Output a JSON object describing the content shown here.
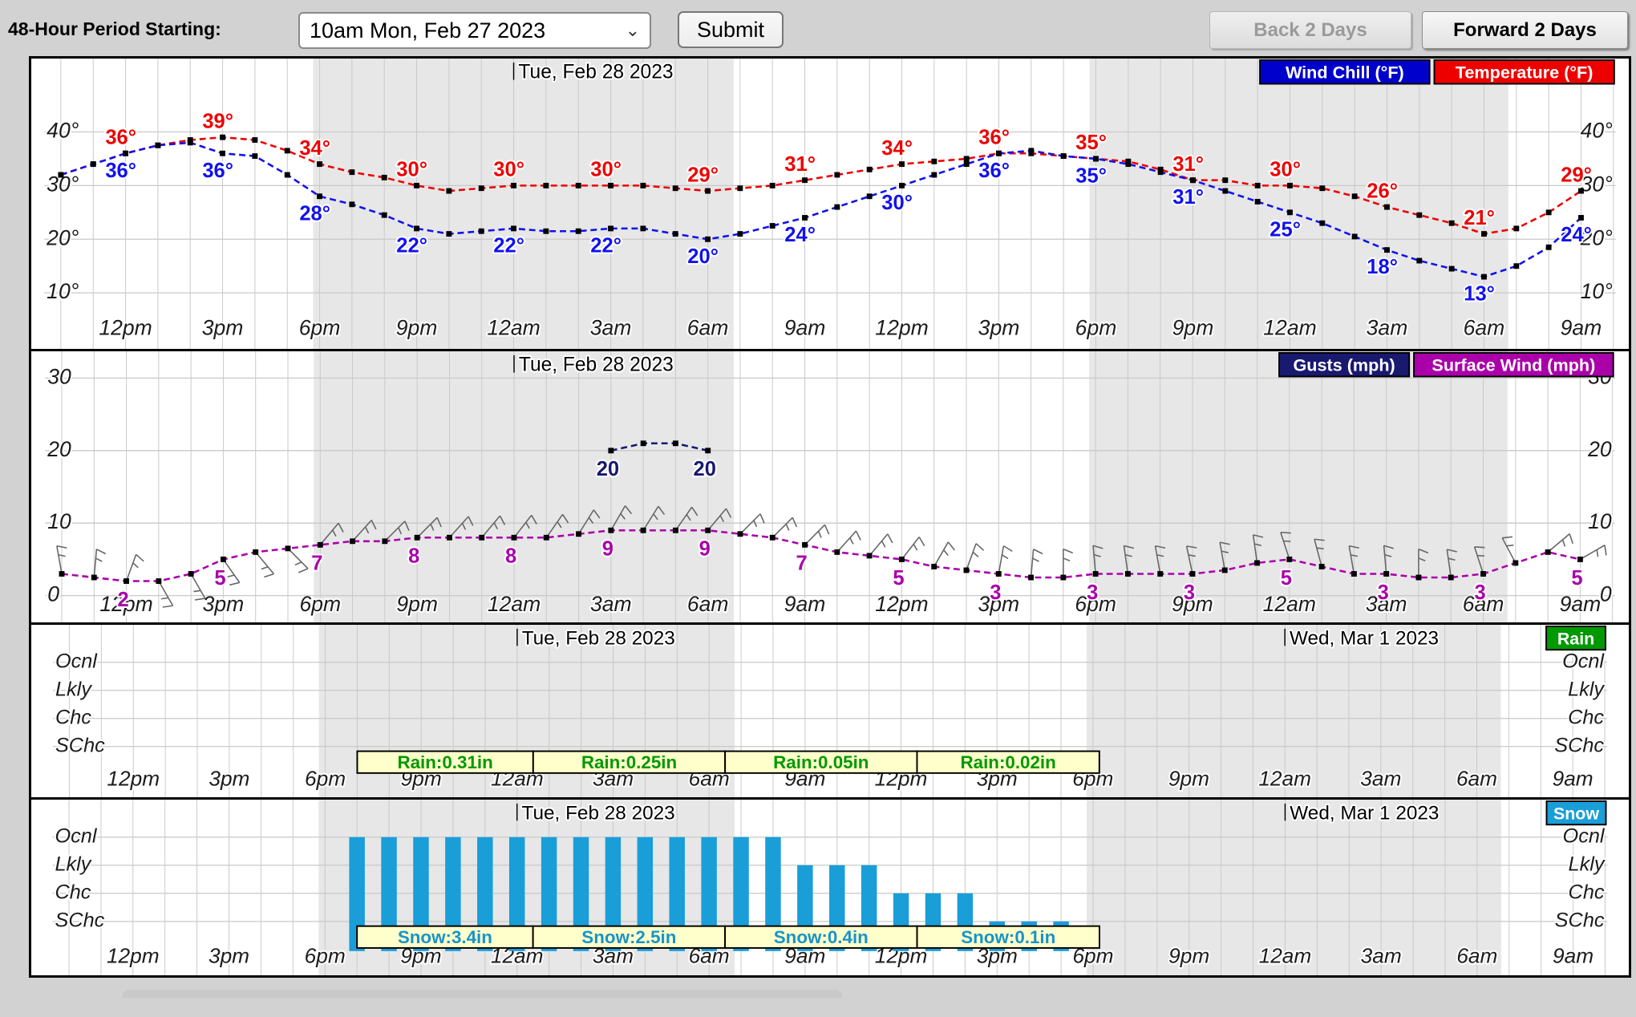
{
  "header": {
    "period_label": "48-Hour Period Starting:",
    "period_value": "10am Mon, Feb 27 2023",
    "submit_label": "Submit",
    "back_label": "Back 2 Days",
    "forward_label": "Forward 2 Days"
  },
  "colors": {
    "temperature": "#ee0000",
    "wind_chill": "#1111ee",
    "gusts": "#191970",
    "surface_wind": "#aa00aa",
    "rain": "#009900",
    "snow": "#1a9ed8",
    "night_shade": "#e7e7e7",
    "grid": "#c9c9c9",
    "accum_box_bg": "#ffffcc"
  },
  "axis": {
    "xtick_hours": [
      2,
      5,
      8,
      11,
      14,
      17,
      20,
      23,
      26,
      29,
      32,
      35,
      38,
      41,
      44,
      47
    ],
    "xtick_labels": [
      "12pm",
      "3pm",
      "6pm",
      "9pm",
      "12am",
      "3am",
      "6am",
      "9am",
      "12pm",
      "3pm",
      "6pm",
      "9pm",
      "12am",
      "3am",
      "6am",
      "9am"
    ],
    "night_bands_hours": [
      [
        7.8,
        20.8
      ],
      [
        31.8,
        44.75
      ]
    ],
    "day1_title": "Tue, Feb 28 2023",
    "day1_hour": 14,
    "day2_title": "Wed, Mar 1 2023",
    "day2_hour": 38
  },
  "chart_data": [
    {
      "type": "line",
      "name": "temperature-windchill",
      "title": "Tue, Feb 28 2023",
      "legend": [
        {
          "label": "Wind Chill (°F)",
          "color": "#0000cc"
        },
        {
          "label": "Temperature (°F)",
          "color": "#ee0000"
        }
      ],
      "ytick_values": [
        40,
        30,
        20,
        10
      ],
      "ytick_labels": [
        "40°",
        "30°",
        "20°",
        "10°"
      ],
      "label_hours": [
        2,
        5,
        8,
        11,
        14,
        17,
        20,
        23,
        26,
        29,
        32,
        35,
        38,
        41,
        44,
        47
      ],
      "series": [
        {
          "name": "Temperature (°F)",
          "color": "#ee0000",
          "values": [
            32,
            34,
            36,
            37.5,
            38.5,
            39,
            38.5,
            36.5,
            34,
            32.5,
            31.5,
            30,
            29,
            29.5,
            30,
            30,
            30,
            30,
            30,
            29.5,
            29,
            29.5,
            30,
            31,
            32,
            33,
            34,
            34.5,
            35,
            36,
            36,
            35.5,
            35,
            34.5,
            33,
            31,
            31,
            30,
            30,
            29.5,
            28,
            26,
            24.5,
            23,
            21,
            22,
            25,
            29
          ],
          "labels": [
            "36°",
            "39°",
            "34°",
            "30°",
            "30°",
            "30°",
            "29°",
            "31°",
            "34°",
            "36°",
            "35°",
            "31°",
            "30°",
            "26°",
            "21°",
            "29°"
          ],
          "label_side": "above"
        },
        {
          "name": "Wind Chill (°F)",
          "color": "#1111ee",
          "values": [
            32,
            34,
            36,
            37.5,
            38,
            36,
            35.5,
            32,
            28,
            26.5,
            24.5,
            22,
            21,
            21.5,
            22,
            21.5,
            21.5,
            22,
            22,
            21,
            20,
            21,
            22.5,
            24,
            26,
            28,
            30,
            32,
            34,
            36,
            36.5,
            35.5,
            35,
            34,
            32.5,
            31,
            29,
            27,
            25,
            23,
            20.5,
            18,
            16,
            14.5,
            13,
            15,
            18.5,
            24
          ],
          "labels": [
            "36°",
            "36°",
            "28°",
            "22°",
            "22°",
            "22°",
            "20°",
            "24°",
            "30°",
            "36°",
            "35°",
            "31°",
            "25°",
            "18°",
            "13°",
            "24°"
          ],
          "label_side": "below"
        }
      ]
    },
    {
      "type": "wind",
      "name": "gusts-surface-wind",
      "title": "Tue, Feb 28 2023",
      "legend": [
        {
          "label": "Gusts (mph)",
          "color": "#191970"
        },
        {
          "label": "Surface Wind (mph)",
          "color": "#aa00aa"
        }
      ],
      "ytick_values": [
        30,
        20,
        10,
        0
      ],
      "surface_wind": {
        "color": "#aa00aa",
        "values": [
          3,
          2.5,
          2,
          2,
          3,
          5,
          6,
          6.5,
          7,
          7.5,
          7.5,
          8,
          8,
          8,
          8,
          8,
          8.5,
          9,
          9,
          9,
          9,
          8.5,
          8,
          7,
          6,
          5.5,
          5,
          4,
          3.5,
          3,
          2.5,
          2.5,
          3,
          3,
          3,
          3,
          3.5,
          4.5,
          5,
          4,
          3,
          3,
          2.5,
          2.5,
          3,
          4.5,
          6,
          5
        ],
        "label_hours": [
          2,
          5,
          8,
          11,
          14,
          17,
          20,
          23,
          26,
          29,
          32,
          35,
          38,
          41,
          44,
          47
        ],
        "labels": [
          "2",
          "5",
          "7",
          "8",
          "8",
          "9",
          "9",
          "7",
          "5",
          "3",
          "3",
          "3",
          "5",
          "3",
          "3",
          "5"
        ]
      },
      "gusts": {
        "color": "#191970",
        "hours": [
          17,
          18,
          19,
          20
        ],
        "values": [
          20,
          21,
          21,
          20
        ],
        "label_hours": [
          17,
          20
        ],
        "labels": [
          "20",
          "20"
        ]
      },
      "barb_angles": [
        -10,
        5,
        20,
        150,
        150,
        145,
        140,
        135,
        40,
        42,
        45,
        45,
        42,
        40,
        38,
        35,
        32,
        30,
        32,
        35,
        40,
        45,
        45,
        45,
        42,
        40,
        38,
        30,
        20,
        10,
        5,
        0,
        -5,
        -8,
        -10,
        -12,
        -10,
        -8,
        -18,
        -15,
        -10,
        -5,
        0,
        -8,
        -18,
        -28,
        50,
        60
      ]
    },
    {
      "type": "prob",
      "name": "rain",
      "title": "Tue, Feb 28 2023",
      "title2": "Wed, Mar 1 2023",
      "legend": [
        {
          "label": "Rain",
          "color": "#009900"
        }
      ],
      "categories": [
        "Ocnl",
        "Lkly",
        "Chc",
        "SChc"
      ],
      "box_text_color": "#009900",
      "boxes": [
        {
          "label": "Rain:0.31in",
          "from_hour": 9,
          "to_hour": 14.5
        },
        {
          "label": "Rain:0.25in",
          "from_hour": 14.5,
          "to_hour": 20.5
        },
        {
          "label": "Rain:0.05in",
          "from_hour": 20.5,
          "to_hour": 26.5
        },
        {
          "label": "Rain:0.02in",
          "from_hour": 26.5,
          "to_hour": 32.2
        }
      ]
    },
    {
      "type": "prob",
      "name": "snow",
      "title": "Tue, Feb 28 2023",
      "title2": "Wed, Mar 1 2023",
      "legend": [
        {
          "label": "Snow",
          "color": "#1a9ed8"
        }
      ],
      "categories": [
        "Ocnl",
        "Lkly",
        "Chc",
        "SChc"
      ],
      "box_text_color": "#1793c9",
      "bars": {
        "color": "#1a9ed8",
        "start_hour": 9,
        "levels": [
          4,
          4,
          4,
          4,
          4,
          4,
          4,
          4,
          4,
          4,
          4,
          4,
          4,
          4,
          3,
          3,
          3,
          2,
          2,
          2,
          1,
          1,
          1
        ]
      },
      "boxes": [
        {
          "label": "Snow:3.4in",
          "from_hour": 9,
          "to_hour": 14.5
        },
        {
          "label": "Snow:2.5in",
          "from_hour": 14.5,
          "to_hour": 20.5
        },
        {
          "label": "Snow:0.4in",
          "from_hour": 20.5,
          "to_hour": 26.5
        },
        {
          "label": "Snow:0.1in",
          "from_hour": 26.5,
          "to_hour": 32.2
        }
      ]
    }
  ]
}
